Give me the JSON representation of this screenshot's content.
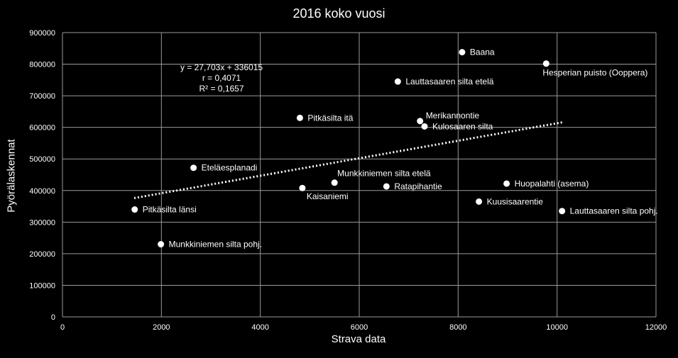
{
  "chart_data": {
    "type": "scatter",
    "title": "2016 koko vuosi",
    "xlabel": "Strava data",
    "ylabel": "Pyörälaskennat",
    "xlim": [
      0,
      12000
    ],
    "ylim": [
      0,
      900000
    ],
    "xticks": [
      "0",
      "2000",
      "4000",
      "6000",
      "8000",
      "10000",
      "12000"
    ],
    "yticks": [
      "0",
      "100000",
      "200000",
      "300000",
      "400000",
      "500000",
      "600000",
      "700000",
      "800000",
      "900000"
    ],
    "grid": true,
    "marker_color": "#ffffff",
    "trendline": {
      "style": "dotted",
      "equation": "y = 27,703x + 336015",
      "r": "r = 0,4071",
      "r2": "R² = 0,1657",
      "slope": 27.703,
      "intercept": 336015,
      "x_range": [
        1450,
        10100
      ]
    },
    "points": [
      {
        "label": "Baana",
        "x": 8080,
        "y": 838000
      },
      {
        "label": "Hesperian puisto (Ooppera)",
        "x": 9780,
        "y": 802000
      },
      {
        "label": "Lauttasaaren silta etelä",
        "x": 6780,
        "y": 745000
      },
      {
        "label": "Pitkäsilta itä",
        "x": 4800,
        "y": 630000
      },
      {
        "label": "Merikannontie",
        "x": 7230,
        "y": 620000
      },
      {
        "label": "Kulosaaren silta",
        "x": 7320,
        "y": 603000
      },
      {
        "label": "Eteläesplanadi",
        "x": 2650,
        "y": 472000
      },
      {
        "label": "Munkkiniemen silta etelä",
        "x": 5500,
        "y": 425000
      },
      {
        "label": "Huopalahti (asema)",
        "x": 8980,
        "y": 422000
      },
      {
        "label": "Ratapihantie",
        "x": 6550,
        "y": 413000
      },
      {
        "label": "Kaisaniemi",
        "x": 4850,
        "y": 408000
      },
      {
        "label": "Kuusisaarentie",
        "x": 8420,
        "y": 365000
      },
      {
        "label": "Pitkäsilta länsi",
        "x": 1460,
        "y": 340000
      },
      {
        "label": "Lauttasaaren silta pohj.",
        "x": 10100,
        "y": 335000
      },
      {
        "label": "Munkkiniemen silta pohj.",
        "x": 1990,
        "y": 230000
      }
    ]
  }
}
